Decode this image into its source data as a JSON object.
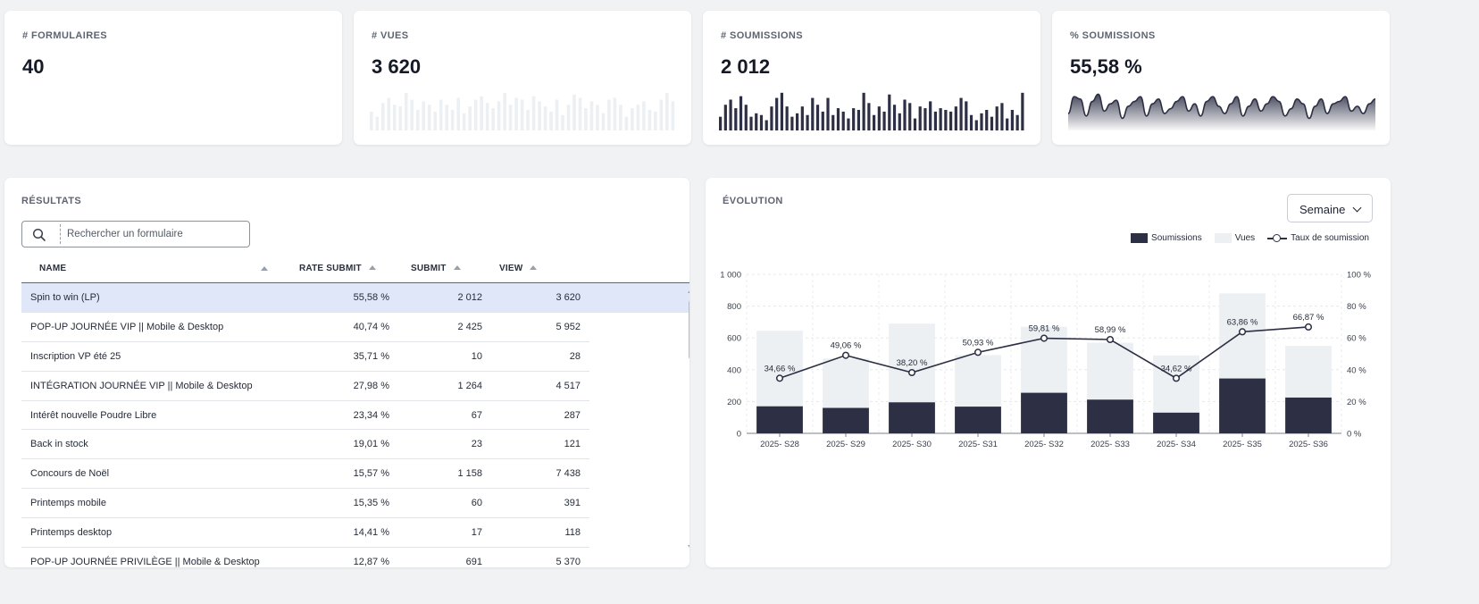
{
  "kpis": [
    {
      "label": "# FORMULAIRES",
      "value": "40"
    },
    {
      "label": "# VUES",
      "value": "3 620"
    },
    {
      "label": "# SOUMISSIONS",
      "value": "2 012"
    },
    {
      "label": "% SOUMISSIONS",
      "value": "55,58 %"
    }
  ],
  "results": {
    "title": "RÉSULTATS",
    "search_placeholder": "Rechercher un formulaire",
    "columns": [
      "NAME",
      "RATE SUBMIT",
      "SUBMIT",
      "VIEW"
    ],
    "rows": [
      {
        "name": "Spin to win (LP)",
        "rate": "55,58 %",
        "submit": "2 012",
        "view": "3 620"
      },
      {
        "name": "POP-UP JOURNÉE VIP || Mobile & Desktop",
        "rate": "40,74 %",
        "submit": "2 425",
        "view": "5 952"
      },
      {
        "name": "Inscription VP été 25",
        "rate": "35,71 %",
        "submit": "10",
        "view": "28"
      },
      {
        "name": "INTÉGRATION JOURNÉE VIP || Mobile & Desktop",
        "rate": "27,98 %",
        "submit": "1 264",
        "view": "4 517"
      },
      {
        "name": "Intérêt nouvelle Poudre Libre",
        "rate": "23,34 %",
        "submit": "67",
        "view": "287"
      },
      {
        "name": "Back in stock",
        "rate": "19,01 %",
        "submit": "23",
        "view": "121"
      },
      {
        "name": "Concours de Noël",
        "rate": "15,57 %",
        "submit": "1 158",
        "view": "7 438"
      },
      {
        "name": "Printemps mobile",
        "rate": "15,35 %",
        "submit": "60",
        "view": "391"
      },
      {
        "name": "Printemps desktop",
        "rate": "14,41 %",
        "submit": "17",
        "view": "118"
      },
      {
        "name": "POP-UP JOURNÉE PRIVILÈGE || Mobile & Desktop",
        "rate": "12,87 %",
        "submit": "691",
        "view": "5 370"
      }
    ]
  },
  "evolution": {
    "title": "ÉVOLUTION",
    "period": "Semaine",
    "legend": [
      "Soumissions",
      "Vues",
      "Taux de soumission"
    ]
  },
  "colors": {
    "dark": "#2d2f44",
    "light": "#ecf0f3",
    "accent_row": "#dfe7f8"
  },
  "chart_data": {
    "type": "bar",
    "categories": [
      "2025- S28",
      "2025- S29",
      "2025- S30",
      "2025- S31",
      "2025- S32",
      "2025- S33",
      "2025- S34",
      "2025- S35",
      "2025- S36"
    ],
    "series": [
      {
        "name": "Soumissions",
        "type": "bar",
        "values": [
          170,
          160,
          195,
          168,
          255,
          212,
          130,
          345,
          225
        ]
      },
      {
        "name": "Vues",
        "type": "bar",
        "values": [
          645,
          470,
          690,
          492,
          670,
          570,
          490,
          880,
          550
        ]
      },
      {
        "name": "Taux de soumission",
        "type": "line",
        "values": [
          34.66,
          49.06,
          38.2,
          50.93,
          59.81,
          58.99,
          34.62,
          63.86,
          66.87
        ],
        "labels": [
          "34,66 %",
          "49,06 %",
          "38,20 %",
          "50,93 %",
          "59,81 %",
          "58,99 %",
          "34,62 %",
          "63,86 %",
          "66,87 %"
        ]
      }
    ],
    "ylim_left": [
      0,
      1000
    ],
    "yticks_left": [
      "0",
      "200",
      "400",
      "600",
      "800",
      "1 000"
    ],
    "ylim_right": [
      0,
      100
    ],
    "yticks_right": [
      "0 %",
      "20 %",
      "40 %",
      "60 %",
      "80 %",
      "100 %"
    ],
    "grid": true
  },
  "sparklines": {
    "vues": [
      22,
      16,
      32,
      38,
      30,
      28,
      44,
      36,
      24,
      34,
      30,
      22,
      36,
      30,
      24,
      38,
      20,
      28,
      36,
      40,
      32,
      26,
      34,
      44,
      30,
      38,
      36,
      24,
      40,
      34,
      28,
      22,
      36,
      18,
      30,
      42,
      38,
      26,
      34,
      30,
      20,
      36,
      38,
      30,
      16,
      26,
      30,
      34,
      24,
      22,
      36,
      44,
      34
    ],
    "soumissions": [
      16,
      30,
      36,
      26,
      40,
      30,
      16,
      20,
      18,
      12,
      28,
      38,
      44,
      28,
      16,
      20,
      28,
      18,
      38,
      30,
      22,
      38,
      18,
      26,
      22,
      14,
      26,
      24,
      44,
      32,
      18,
      28,
      22,
      42,
      30,
      20,
      36,
      32,
      14,
      28,
      26,
      34,
      22,
      26,
      24,
      22,
      28,
      38,
      34,
      18,
      12,
      20,
      24,
      16,
      28,
      32,
      14,
      24,
      18,
      44
    ],
    "taux": [
      14,
      28,
      26,
      12,
      24,
      30,
      16,
      22,
      25,
      10,
      20,
      24,
      28,
      12,
      22,
      26,
      14,
      18,
      24,
      28,
      16,
      22,
      12,
      24,
      28,
      20,
      14,
      22,
      28,
      12,
      20,
      26,
      16,
      22,
      28,
      24,
      12,
      18,
      26,
      22,
      10,
      20,
      26,
      14,
      22,
      24,
      28,
      16,
      20,
      14,
      22,
      26
    ]
  }
}
